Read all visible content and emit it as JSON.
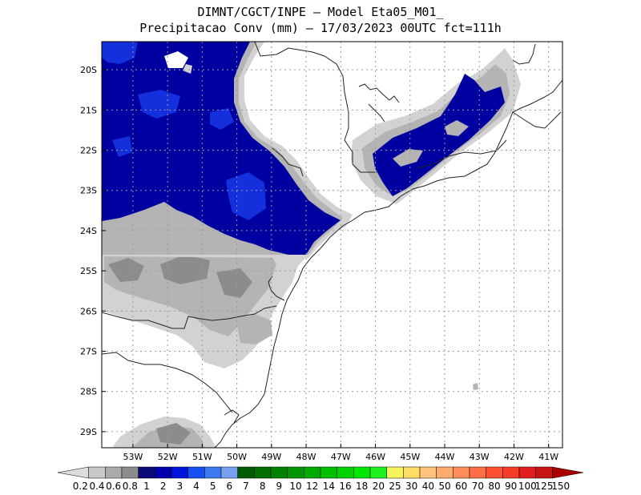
{
  "title": {
    "line1": "DIMNT/CGCT/INPE  –   Model Eta05_M01_",
    "line2": "Precipitacao Conv (mm) – 17/03/2023 00UTC fct=111h"
  },
  "map": {
    "lon_range": [
      -53.9,
      -40.6
    ],
    "lat_range": [
      -29.4,
      -19.3
    ],
    "lon_ticks": [
      {
        "value": -53,
        "label": "53W"
      },
      {
        "value": -52,
        "label": "52W"
      },
      {
        "value": -51,
        "label": "51W"
      },
      {
        "value": -50,
        "label": "50W"
      },
      {
        "value": -49,
        "label": "49W"
      },
      {
        "value": -48,
        "label": "48W"
      },
      {
        "value": -47,
        "label": "47W"
      },
      {
        "value": -46,
        "label": "46W"
      },
      {
        "value": -45,
        "label": "45W"
      },
      {
        "value": -44,
        "label": "44W"
      },
      {
        "value": -43,
        "label": "43W"
      },
      {
        "value": -42,
        "label": "42W"
      },
      {
        "value": -41,
        "label": "41W"
      }
    ],
    "lat_ticks": [
      {
        "value": -20,
        "label": "20S"
      },
      {
        "value": -21,
        "label": "21S"
      },
      {
        "value": -22,
        "label": "22S"
      },
      {
        "value": -23,
        "label": "23S"
      },
      {
        "value": -24,
        "label": "24S"
      },
      {
        "value": -25,
        "label": "25S"
      },
      {
        "value": -26,
        "label": "26S"
      },
      {
        "value": -27,
        "label": "27S"
      },
      {
        "value": -28,
        "label": "28S"
      },
      {
        "value": -29,
        "label": "29S"
      }
    ],
    "colors": {
      "frame": "#000000",
      "grid": "#999999",
      "coast": "#222222",
      "gray_light": "#d2d2d2",
      "gray_mid": "#b4b4b4",
      "gray_dark": "#8c8c8c",
      "blue_dark": "#0000a0",
      "blue_mid": "#1430dc"
    }
  },
  "colorbar": {
    "labels": [
      "0.2",
      "0.4",
      "0.6",
      "0.8",
      "1",
      "2",
      "3",
      "4",
      "5",
      "6",
      "7",
      "8",
      "9",
      "10",
      "12",
      "14",
      "16",
      "18",
      "20",
      "25",
      "30",
      "40",
      "50",
      "60",
      "70",
      "80",
      "90",
      "100",
      "125",
      "150"
    ],
    "colors": [
      "#dcdcdc",
      "#c8c8c8",
      "#aaaaaa",
      "#8c8c8c",
      "#0a0a78",
      "#0000aa",
      "#0014dc",
      "#1450f0",
      "#3c78f0",
      "#78a0f0",
      "#005a00",
      "#006e00",
      "#008200",
      "#009600",
      "#00aa00",
      "#00be00",
      "#00d200",
      "#00e600",
      "#1ef01e",
      "#f5f55a",
      "#ffdc64",
      "#ffc37d",
      "#ffaa6e",
      "#ff8c5a",
      "#ff6e46",
      "#ff5032",
      "#f53c28",
      "#e11e1e",
      "#c81414",
      "#aa0000"
    ]
  }
}
